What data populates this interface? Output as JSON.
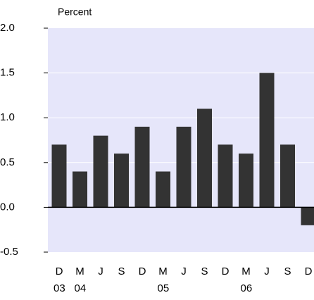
{
  "chart_data": {
    "type": "bar",
    "y_label": "Percent",
    "categories": [
      "D",
      "M",
      "J",
      "S",
      "D",
      "M",
      "J",
      "S",
      "D",
      "M",
      "J",
      "S",
      "D"
    ],
    "year_labels": [
      "03",
      "04",
      null,
      null,
      null,
      "05",
      null,
      null,
      null,
      "06",
      null,
      null,
      null
    ],
    "values": [
      0.7,
      0.4,
      0.8,
      0.6,
      0.9,
      0.4,
      0.9,
      1.1,
      0.7,
      0.6,
      1.5,
      0.7,
      -0.2
    ],
    "color": "#333333",
    "background": "#e6e6fa",
    "ylim": [
      -0.5,
      2.0
    ],
    "yticks": [
      {
        "value": 2.0,
        "label": "2.0"
      },
      1.5,
      {
        "value": 1.0,
        "label": "1.0"
      },
      0.5,
      {
        "value": 0,
        "label": "0.0"
      },
      -0.5
    ],
    "grid": true
  }
}
